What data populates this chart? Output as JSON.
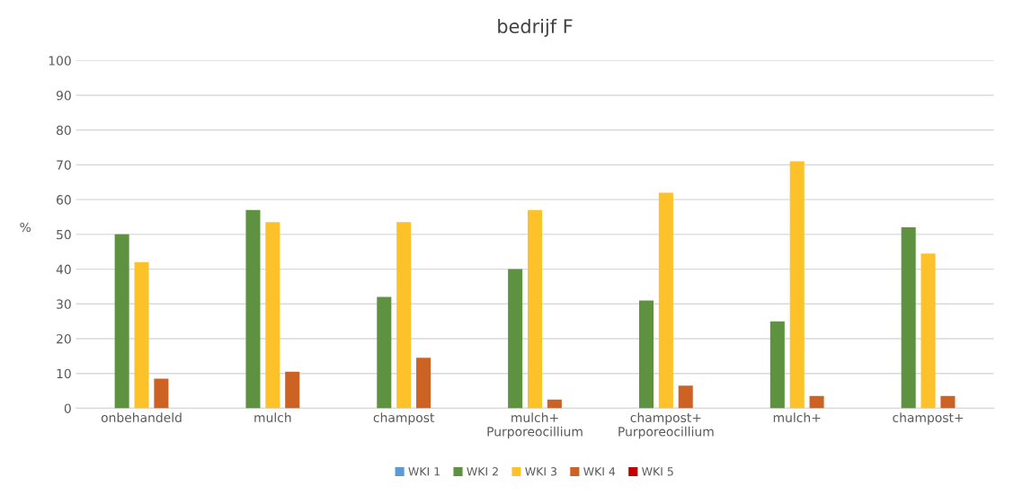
{
  "chart_data": {
    "type": "bar",
    "title": "bedrijf F",
    "ylabel": "%",
    "categories": [
      "onbehandeld",
      "mulch",
      "champost",
      "mulch+\nPurporeocillium",
      "champost+\nPurporeocillium",
      "mulch+",
      "champost+"
    ],
    "series": [
      {
        "name": "WKI 1",
        "color": "#5b9bd5",
        "values": [
          0,
          0,
          0,
          0,
          0,
          0,
          0
        ]
      },
      {
        "name": "WKI 2",
        "color": "#5e9140",
        "values": [
          50,
          57,
          32,
          40,
          31,
          25,
          52
        ]
      },
      {
        "name": "WKI 3",
        "color": "#fdc12a",
        "values": [
          42,
          53.5,
          53.5,
          57,
          62,
          71,
          44.5
        ]
      },
      {
        "name": "WKI 4",
        "color": "#cc6324",
        "values": [
          8.5,
          10.5,
          14.5,
          2.5,
          6.5,
          3.5,
          3.5
        ]
      },
      {
        "name": "WKI 5",
        "color": "#c00000",
        "values": [
          0,
          0,
          0,
          0,
          0,
          0,
          0
        ]
      }
    ],
    "ylim": [
      0,
      100
    ],
    "yticks": [
      0,
      10,
      20,
      30,
      40,
      50,
      60,
      70,
      80,
      90,
      100
    ],
    "grid": "y",
    "legend": "bottom"
  }
}
